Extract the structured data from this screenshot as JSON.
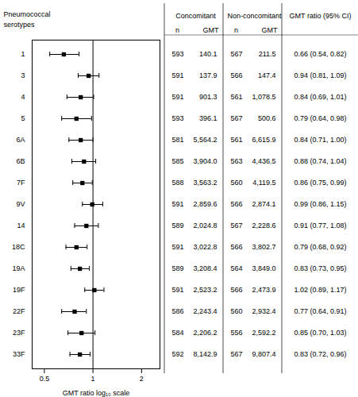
{
  "chart_data": {
    "type": "forest",
    "categories": [
      "1",
      "3",
      "4",
      "5",
      "6A",
      "6B",
      "7F",
      "9V",
      "14",
      "18C",
      "19A",
      "19F",
      "22F",
      "23F",
      "33F"
    ],
    "values": [
      0.66,
      0.94,
      0.84,
      0.79,
      0.84,
      0.88,
      0.86,
      0.99,
      0.91,
      0.79,
      0.83,
      1.02,
      0.77,
      0.85,
      0.83
    ],
    "ci_low": [
      0.54,
      0.81,
      0.69,
      0.64,
      0.71,
      0.74,
      0.75,
      0.86,
      0.77,
      0.68,
      0.73,
      0.89,
      0.64,
      0.7,
      0.72
    ],
    "ci_high": [
      0.82,
      1.09,
      1.01,
      0.98,
      1.0,
      1.04,
      0.99,
      1.15,
      1.08,
      0.92,
      0.95,
      1.17,
      0.91,
      1.03,
      0.96
    ],
    "value_labels": [
      "0.66 (0.54, 0.82)",
      "0.94 (0.81, 1.09)",
      "0.84 (0.69, 1.01)",
      "0.79 (0.64, 0.98)",
      "0.84 (0.71, 1.00)",
      "0.88 (0.74, 1.04)",
      "0.86 (0.75, 0.99)",
      "0.99 (0.86, 1.15)",
      "0.91 (0.77, 1.08)",
      "0.79 (0.68, 0.92)",
      "0.83 (0.73, 0.95)",
      "1.02 (0.89, 1.17)",
      "0.77 (0.64, 0.91)",
      "0.85 (0.70, 1.03)",
      "0.83 (0.72, 0.96)"
    ],
    "value_labels_header": "GMT ratio (95% CI)",
    "xlabel": "GMT ratio log₁₀ scale",
    "xlim": [
      0.42,
      2.6
    ],
    "xticks": [
      0.5,
      1,
      2
    ],
    "log": "x",
    "ref_line": 1,
    "row_header": [
      "Pneumococcal",
      "serotypes"
    ],
    "table_groups": [
      {
        "title": "Concomitant",
        "columns": [
          {
            "header": "n",
            "values": [
              593,
              591,
              591,
              593,
              581,
              585,
              588,
              591,
              589,
              591,
              589,
              591,
              586,
              584,
              592
            ]
          },
          {
            "header": "GMT",
            "labels": [
              "140.1",
              "137.9",
              "901.3",
              "396.1",
              "5,564.2",
              "3,904.0",
              "3,563.2",
              "2,859.6",
              "2,024.8",
              "3,022.8",
              "3,208.4",
              "2,523.2",
              "2,243.4",
              "2,206.2",
              "8,142.9"
            ]
          }
        ]
      },
      {
        "title": "Non-concomitant",
        "columns": [
          {
            "header": "n",
            "values": [
              567,
              566,
              561,
              567,
              561,
              563,
              560,
              566,
              567,
              566,
              564,
              566,
              560,
              556,
              567
            ]
          },
          {
            "header": "GMT",
            "labels": [
              "211.5",
              "147.4",
              "1,078.5",
              "500.6",
              "6,615.9",
              "4,436.5",
              "4,119.5",
              "2,874.1",
              "2,228.6",
              "3,802.7",
              "3,849.0",
              "2,473.9",
              "2,932.4",
              "2,592.2",
              "9,807.4"
            ]
          }
        ]
      }
    ]
  }
}
